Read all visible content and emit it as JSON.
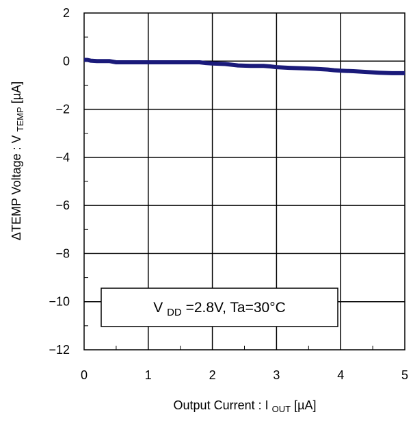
{
  "chart_data": {
    "type": "line",
    "title": "",
    "xlabel": {
      "main": "Output Current : I",
      "sub": "OUT",
      "unit": " [µA]"
    },
    "ylabel": {
      "prefix": "ΔTEMP Voltage : V",
      "sub": "TEMP",
      "unit": " [µA]"
    },
    "xlim": [
      0,
      5
    ],
    "ylim": [
      -12,
      2
    ],
    "xticks": [
      0,
      1,
      2,
      3,
      4,
      5
    ],
    "yticks": [
      2,
      0,
      -2,
      -4,
      -6,
      -8,
      -10,
      -12
    ],
    "ytick_labels": [
      "2",
      "0",
      "−2",
      "−4",
      "−6",
      "−8",
      "−10",
      "−12"
    ],
    "grid": true,
    "annotation": {
      "v": "V",
      "sub": "DD",
      "rest": "=2.8V, Ta=30°C"
    },
    "series": [
      {
        "color": "#1a1a7a",
        "x": [
          0,
          0.05,
          0.1,
          0.2,
          0.3,
          0.4,
          0.5,
          0.6,
          0.8,
          1.0,
          1.2,
          1.4,
          1.6,
          1.8,
          1.9,
          2.0,
          2.2,
          2.4,
          2.6,
          2.8,
          2.9,
          3.0,
          3.2,
          3.4,
          3.6,
          3.8,
          3.9,
          4.0,
          4.2,
          4.4,
          4.6,
          4.8,
          5.0
        ],
        "y": [
          0.05,
          0.05,
          0.02,
          0.0,
          0.0,
          0.0,
          -0.05,
          -0.05,
          -0.05,
          -0.05,
          -0.05,
          -0.05,
          -0.05,
          -0.05,
          -0.08,
          -0.1,
          -0.12,
          -0.18,
          -0.2,
          -0.2,
          -0.22,
          -0.25,
          -0.28,
          -0.3,
          -0.32,
          -0.35,
          -0.38,
          -0.4,
          -0.42,
          -0.45,
          -0.48,
          -0.5,
          -0.5
        ]
      }
    ]
  }
}
